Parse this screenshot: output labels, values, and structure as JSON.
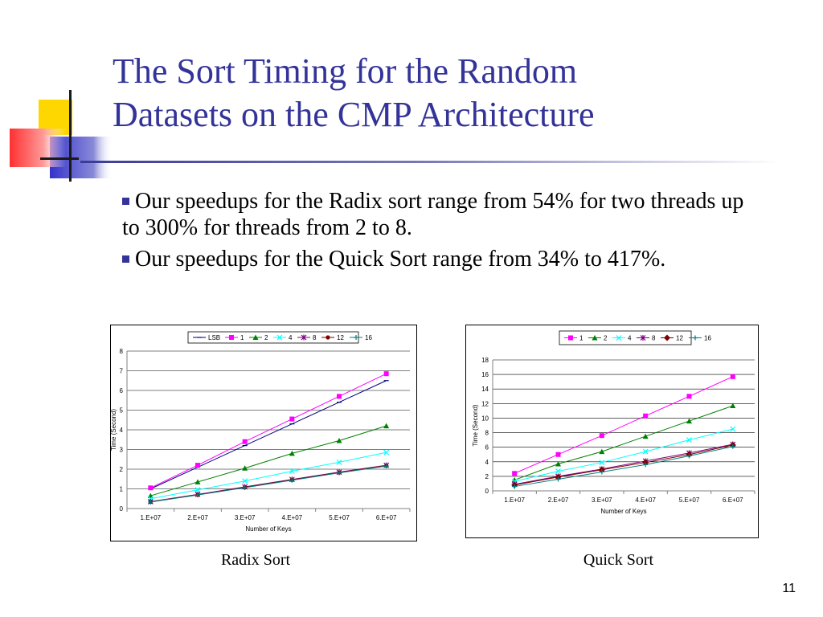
{
  "slide": {
    "title_line1": "The Sort Timing for the Random",
    "title_line2": "Datasets on the CMP Architecture",
    "bullets": [
      "Our speedups for the Radix sort range from 54% for two threads up to 300% for threads from 2 to 8.",
      "Our speedups for the Quick Sort range from 34% to 417%."
    ],
    "captions": [
      "Radix Sort",
      "Quick Sort"
    ],
    "page_number": "11"
  },
  "chart_data": [
    {
      "type": "line",
      "xlabel": "Number of Keys",
      "ylabel": "Time (Second)",
      "categories": [
        "1.E+07",
        "2.E+07",
        "3.E+07",
        "4.E+07",
        "5.E+07",
        "6.E+07"
      ],
      "ylim": [
        0,
        8
      ],
      "yticks": [
        0,
        1,
        2,
        3,
        4,
        5,
        6,
        7,
        8
      ],
      "grid": true,
      "legend_position": "top",
      "series": [
        {
          "name": "LSB",
          "color": "#000080",
          "marker": "dash",
          "values": [
            1.0,
            2.1,
            3.2,
            4.3,
            5.4,
            6.5
          ]
        },
        {
          "name": "1",
          "color": "#ff00ff",
          "marker": "square",
          "values": [
            1.05,
            2.2,
            3.4,
            4.55,
            5.7,
            6.85
          ]
        },
        {
          "name": "2",
          "color": "#008000",
          "marker": "triangle",
          "values": [
            0.65,
            1.35,
            2.05,
            2.8,
            3.45,
            4.2
          ]
        },
        {
          "name": "4",
          "color": "#00ffff",
          "marker": "x",
          "values": [
            0.5,
            0.95,
            1.4,
            1.9,
            2.35,
            2.85
          ]
        },
        {
          "name": "8",
          "color": "#800080",
          "marker": "star",
          "values": [
            0.35,
            0.72,
            1.1,
            1.48,
            1.85,
            2.2
          ]
        },
        {
          "name": "12",
          "color": "#800000",
          "marker": "circle",
          "values": [
            0.34,
            0.7,
            1.08,
            1.46,
            1.83,
            2.18
          ]
        },
        {
          "name": "16",
          "color": "#008080",
          "marker": "plus",
          "values": [
            0.33,
            0.69,
            1.06,
            1.44,
            1.81,
            2.16
          ]
        }
      ]
    },
    {
      "type": "line",
      "xlabel": "Number of Keys",
      "ylabel": "Time (Second)",
      "categories": [
        "1.E+07",
        "2.E+07",
        "3.E+07",
        "4.E+07",
        "5.E+07",
        "6.E+07"
      ],
      "ylim": [
        0,
        18
      ],
      "yticks": [
        0,
        2,
        4,
        6,
        8,
        10,
        12,
        14,
        16,
        18
      ],
      "grid": true,
      "legend_position": "top",
      "series": [
        {
          "name": "1",
          "color": "#ff00ff",
          "marker": "square",
          "values": [
            2.4,
            5.0,
            7.6,
            10.3,
            13.0,
            15.7
          ]
        },
        {
          "name": "2",
          "color": "#008000",
          "marker": "triangle",
          "values": [
            1.5,
            3.7,
            5.4,
            7.5,
            9.6,
            11.7
          ]
        },
        {
          "name": "4",
          "color": "#00ffff",
          "marker": "x",
          "values": [
            1.3,
            2.7,
            3.9,
            5.4,
            7.0,
            8.5
          ]
        },
        {
          "name": "8",
          "color": "#800080",
          "marker": "star",
          "values": [
            0.9,
            2.0,
            3.0,
            4.1,
            5.2,
            6.4
          ]
        },
        {
          "name": "12",
          "color": "#800000",
          "marker": "diamond",
          "values": [
            0.8,
            1.9,
            2.9,
            3.9,
            5.0,
            6.3
          ]
        },
        {
          "name": "16",
          "color": "#008080",
          "marker": "plus",
          "values": [
            0.6,
            1.6,
            2.6,
            3.6,
            4.8,
            6.1
          ]
        }
      ]
    }
  ]
}
